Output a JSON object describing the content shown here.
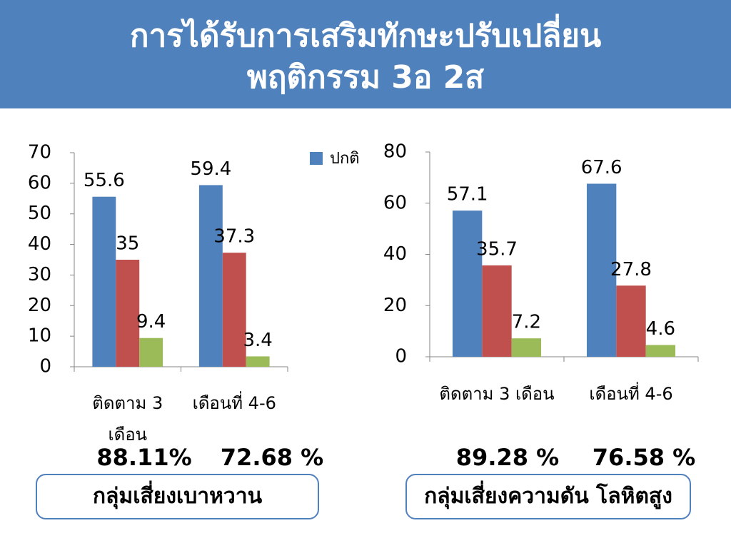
{
  "header": {
    "title": [
      "การได้รับการเสริมทักษะปรับเปลี่ยน",
      "พฤติกรรม 3อ 2ส"
    ]
  },
  "chart_data": [
    {
      "type": "bar",
      "title": "กลุ่มเสี่ยงเบาหวาน",
      "categories": [
        "ติดตาม 3 เดือน",
        "เดือนที่ 4-6"
      ],
      "series": [
        {
          "name": "ปกติ",
          "color": "#4f81bd",
          "values": [
            55.6,
            59.4
          ]
        },
        {
          "color": "#c0504d",
          "values": [
            35,
            37.3
          ]
        },
        {
          "color": "#9bbb59",
          "values": [
            9.4,
            3.4
          ]
        }
      ],
      "ylim": [
        0,
        70
      ],
      "yticks": [
        0,
        10,
        20,
        30,
        40,
        50,
        60,
        70
      ],
      "legend": "top-right",
      "annotations": [
        "88.11%",
        "72.68 %"
      ]
    },
    {
      "type": "bar",
      "title": "กลุ่มเสี่ยงความดัน โลหิตสูง",
      "categories": [
        "ติดตาม 3 เดือน",
        "เดือนที่ 4-6"
      ],
      "series": [
        {
          "color": "#4f81bd",
          "values": [
            57.1,
            67.6
          ]
        },
        {
          "color": "#c0504d",
          "values": [
            35.7,
            27.8
          ]
        },
        {
          "color": "#9bbb59",
          "values": [
            7.2,
            4.6
          ]
        }
      ],
      "ylim": [
        0,
        80
      ],
      "yticks": [
        0,
        20,
        40,
        60,
        80
      ],
      "annotations": [
        "89.28 %",
        "76.58 %"
      ]
    }
  ]
}
